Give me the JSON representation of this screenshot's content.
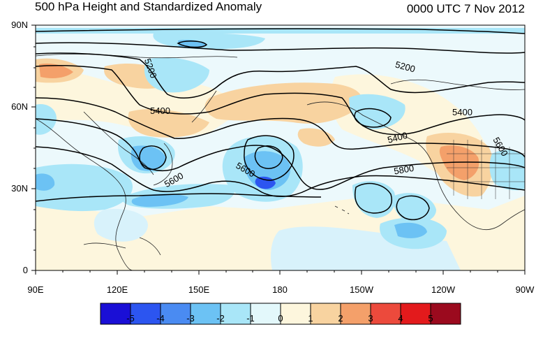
{
  "title": "500 hPa Height and Standardized Anomaly",
  "timestamp": "0000 UTC 7 Nov 2012",
  "y_axis_labels": [
    "90N",
    "60N",
    "30N",
    "0"
  ],
  "x_axis_labels": [
    "90E",
    "120E",
    "150E",
    "180",
    "150W",
    "120W",
    "90W"
  ],
  "contour_labels": [
    "5200",
    "5200",
    "5400",
    "5400",
    "5400",
    "5600",
    "5600",
    "5600",
    "5800"
  ],
  "colorbar": {
    "labels": [
      "-5",
      "-4",
      "-3",
      "-2",
      "-1",
      "0",
      "1",
      "2",
      "3",
      "4",
      "5"
    ],
    "colors": [
      "#1a0fd6",
      "#2c55f0",
      "#4a8bf2",
      "#6cc2f4",
      "#a9e6f8",
      "#e3f8fb",
      "#fdf6dd",
      "#f8d3a0",
      "#f4a06a",
      "#ec4a3c",
      "#e31a1c",
      "#9b0a1e"
    ]
  },
  "colors": {
    "negative_light": "#d8f2fb",
    "negative_mid": "#a9e6f8",
    "negative_strong": "#6cc2f4",
    "negative_deep": "#2c55f0",
    "positive_light": "#fdf6dd",
    "positive_mid": "#f8d3a0",
    "positive_strong": "#f4a06a"
  }
}
